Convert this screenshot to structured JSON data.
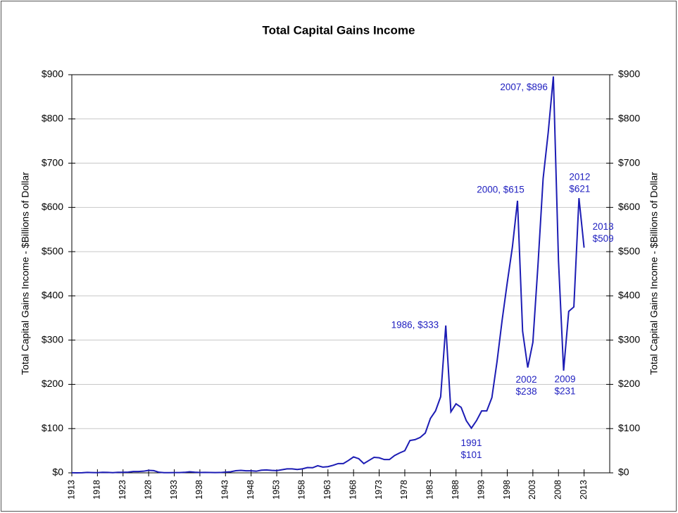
{
  "chart_data": {
    "type": "line",
    "title": "Total Capital Gains Income",
    "y_label": "Total Capital Gains Income - $Billions of Dollar",
    "y2_label": "Total Capital Gains Income - $Billions of Dollar",
    "x": [
      1913,
      1914,
      1915,
      1916,
      1917,
      1918,
      1919,
      1920,
      1921,
      1922,
      1923,
      1924,
      1925,
      1926,
      1927,
      1928,
      1929,
      1930,
      1931,
      1932,
      1933,
      1934,
      1935,
      1936,
      1937,
      1938,
      1939,
      1940,
      1941,
      1942,
      1943,
      1944,
      1945,
      1946,
      1947,
      1948,
      1949,
      1950,
      1951,
      1952,
      1953,
      1954,
      1955,
      1956,
      1957,
      1958,
      1959,
      1960,
      1961,
      1962,
      1963,
      1964,
      1965,
      1966,
      1967,
      1968,
      1969,
      1970,
      1971,
      1972,
      1973,
      1974,
      1975,
      1976,
      1977,
      1978,
      1979,
      1980,
      1981,
      1982,
      1983,
      1984,
      1985,
      1986,
      1987,
      1988,
      1989,
      1990,
      1991,
      1992,
      1993,
      1994,
      1995,
      1996,
      1997,
      1998,
      1999,
      2000,
      2001,
      2002,
      2003,
      2004,
      2005,
      2006,
      2007,
      2008,
      2009,
      2010,
      2011,
      2012,
      2013
    ],
    "series": [
      {
        "name": "Total Capital Gains Income",
        "color": "#1c1cb4",
        "values": [
          0.2,
          0.1,
          0.2,
          0.9,
          0.6,
          0.5,
          1.2,
          1.0,
          0.5,
          1.2,
          1.2,
          1.6,
          2.9,
          2.9,
          3.7,
          5.5,
          5.0,
          1.3,
          0.5,
          0.3,
          0.6,
          0.6,
          1.1,
          2.3,
          1.3,
          0.8,
          0.9,
          0.7,
          0.6,
          0.7,
          1.6,
          2.4,
          4.7,
          5.6,
          4.5,
          4.5,
          3.7,
          6.0,
          6.5,
          5.5,
          5.0,
          7.0,
          9.0,
          9.0,
          7.6,
          9.0,
          12,
          11.5,
          16,
          13,
          14,
          17,
          21,
          21,
          28,
          36,
          32,
          21,
          28,
          35,
          34,
          30,
          30,
          39,
          45,
          50,
          73,
          75,
          80,
          90,
          123,
          140,
          172,
          333,
          138,
          156,
          148,
          118,
          101,
          118,
          140,
          140,
          170,
          251,
          345,
          430,
          510,
          615,
          320,
          238,
          295,
          470,
          665,
          770,
          896,
          480,
          231,
          365,
          375,
          621,
          509
        ]
      }
    ],
    "xlim": [
      1913,
      2018
    ],
    "xticks": [
      1913,
      1918,
      1923,
      1928,
      1933,
      1938,
      1943,
      1948,
      1953,
      1958,
      1963,
      1968,
      1973,
      1978,
      1983,
      1988,
      1993,
      1998,
      2003,
      2008,
      2013
    ],
    "ylim": [
      0,
      900
    ],
    "yticks": [
      {
        "value": 0,
        "label": "$0"
      },
      {
        "value": 100,
        "label": "$100"
      },
      {
        "value": 200,
        "label": "$200"
      },
      {
        "value": 300,
        "label": "$300"
      },
      {
        "value": 400,
        "label": "$400"
      },
      {
        "value": 500,
        "label": "$500"
      },
      {
        "value": 600,
        "label": "$600"
      },
      {
        "value": 700,
        "label": "$700"
      },
      {
        "value": 800,
        "label": "$800"
      },
      {
        "value": 900,
        "label": "$900"
      }
    ],
    "y2lim": [
      0,
      900
    ],
    "y2ticks": [
      {
        "value": 0,
        "label": "$0"
      },
      {
        "value": 100,
        "label": "$100"
      },
      {
        "value": 200,
        "label": "$200"
      },
      {
        "value": 300,
        "label": "$300"
      },
      {
        "value": 400,
        "label": "$400"
      },
      {
        "value": 500,
        "label": "$500"
      },
      {
        "value": 600,
        "label": "$600"
      },
      {
        "value": 700,
        "label": "$700"
      },
      {
        "value": 800,
        "label": "$800"
      },
      {
        "value": 900,
        "label": "$900"
      }
    ],
    "grid": true,
    "annotations": [
      {
        "text": [
          "1986, $333"
        ],
        "x": 1986,
        "y": 333
      },
      {
        "text": [
          "1991",
          "$101"
        ],
        "x": 1991,
        "y": 101
      },
      {
        "text": [
          "2000, $615"
        ],
        "x": 2000,
        "y": 615
      },
      {
        "text": [
          "2002",
          "$238"
        ],
        "x": 2002,
        "y": 238
      },
      {
        "text": [
          "2007, $896"
        ],
        "x": 2007,
        "y": 896
      },
      {
        "text": [
          "2009",
          "$231"
        ],
        "x": 2009,
        "y": 231
      },
      {
        "text": [
          "2012",
          "$621"
        ],
        "x": 2012,
        "y": 621
      },
      {
        "text": [
          "2013",
          "$509"
        ],
        "x": 2013,
        "y": 509
      }
    ]
  }
}
